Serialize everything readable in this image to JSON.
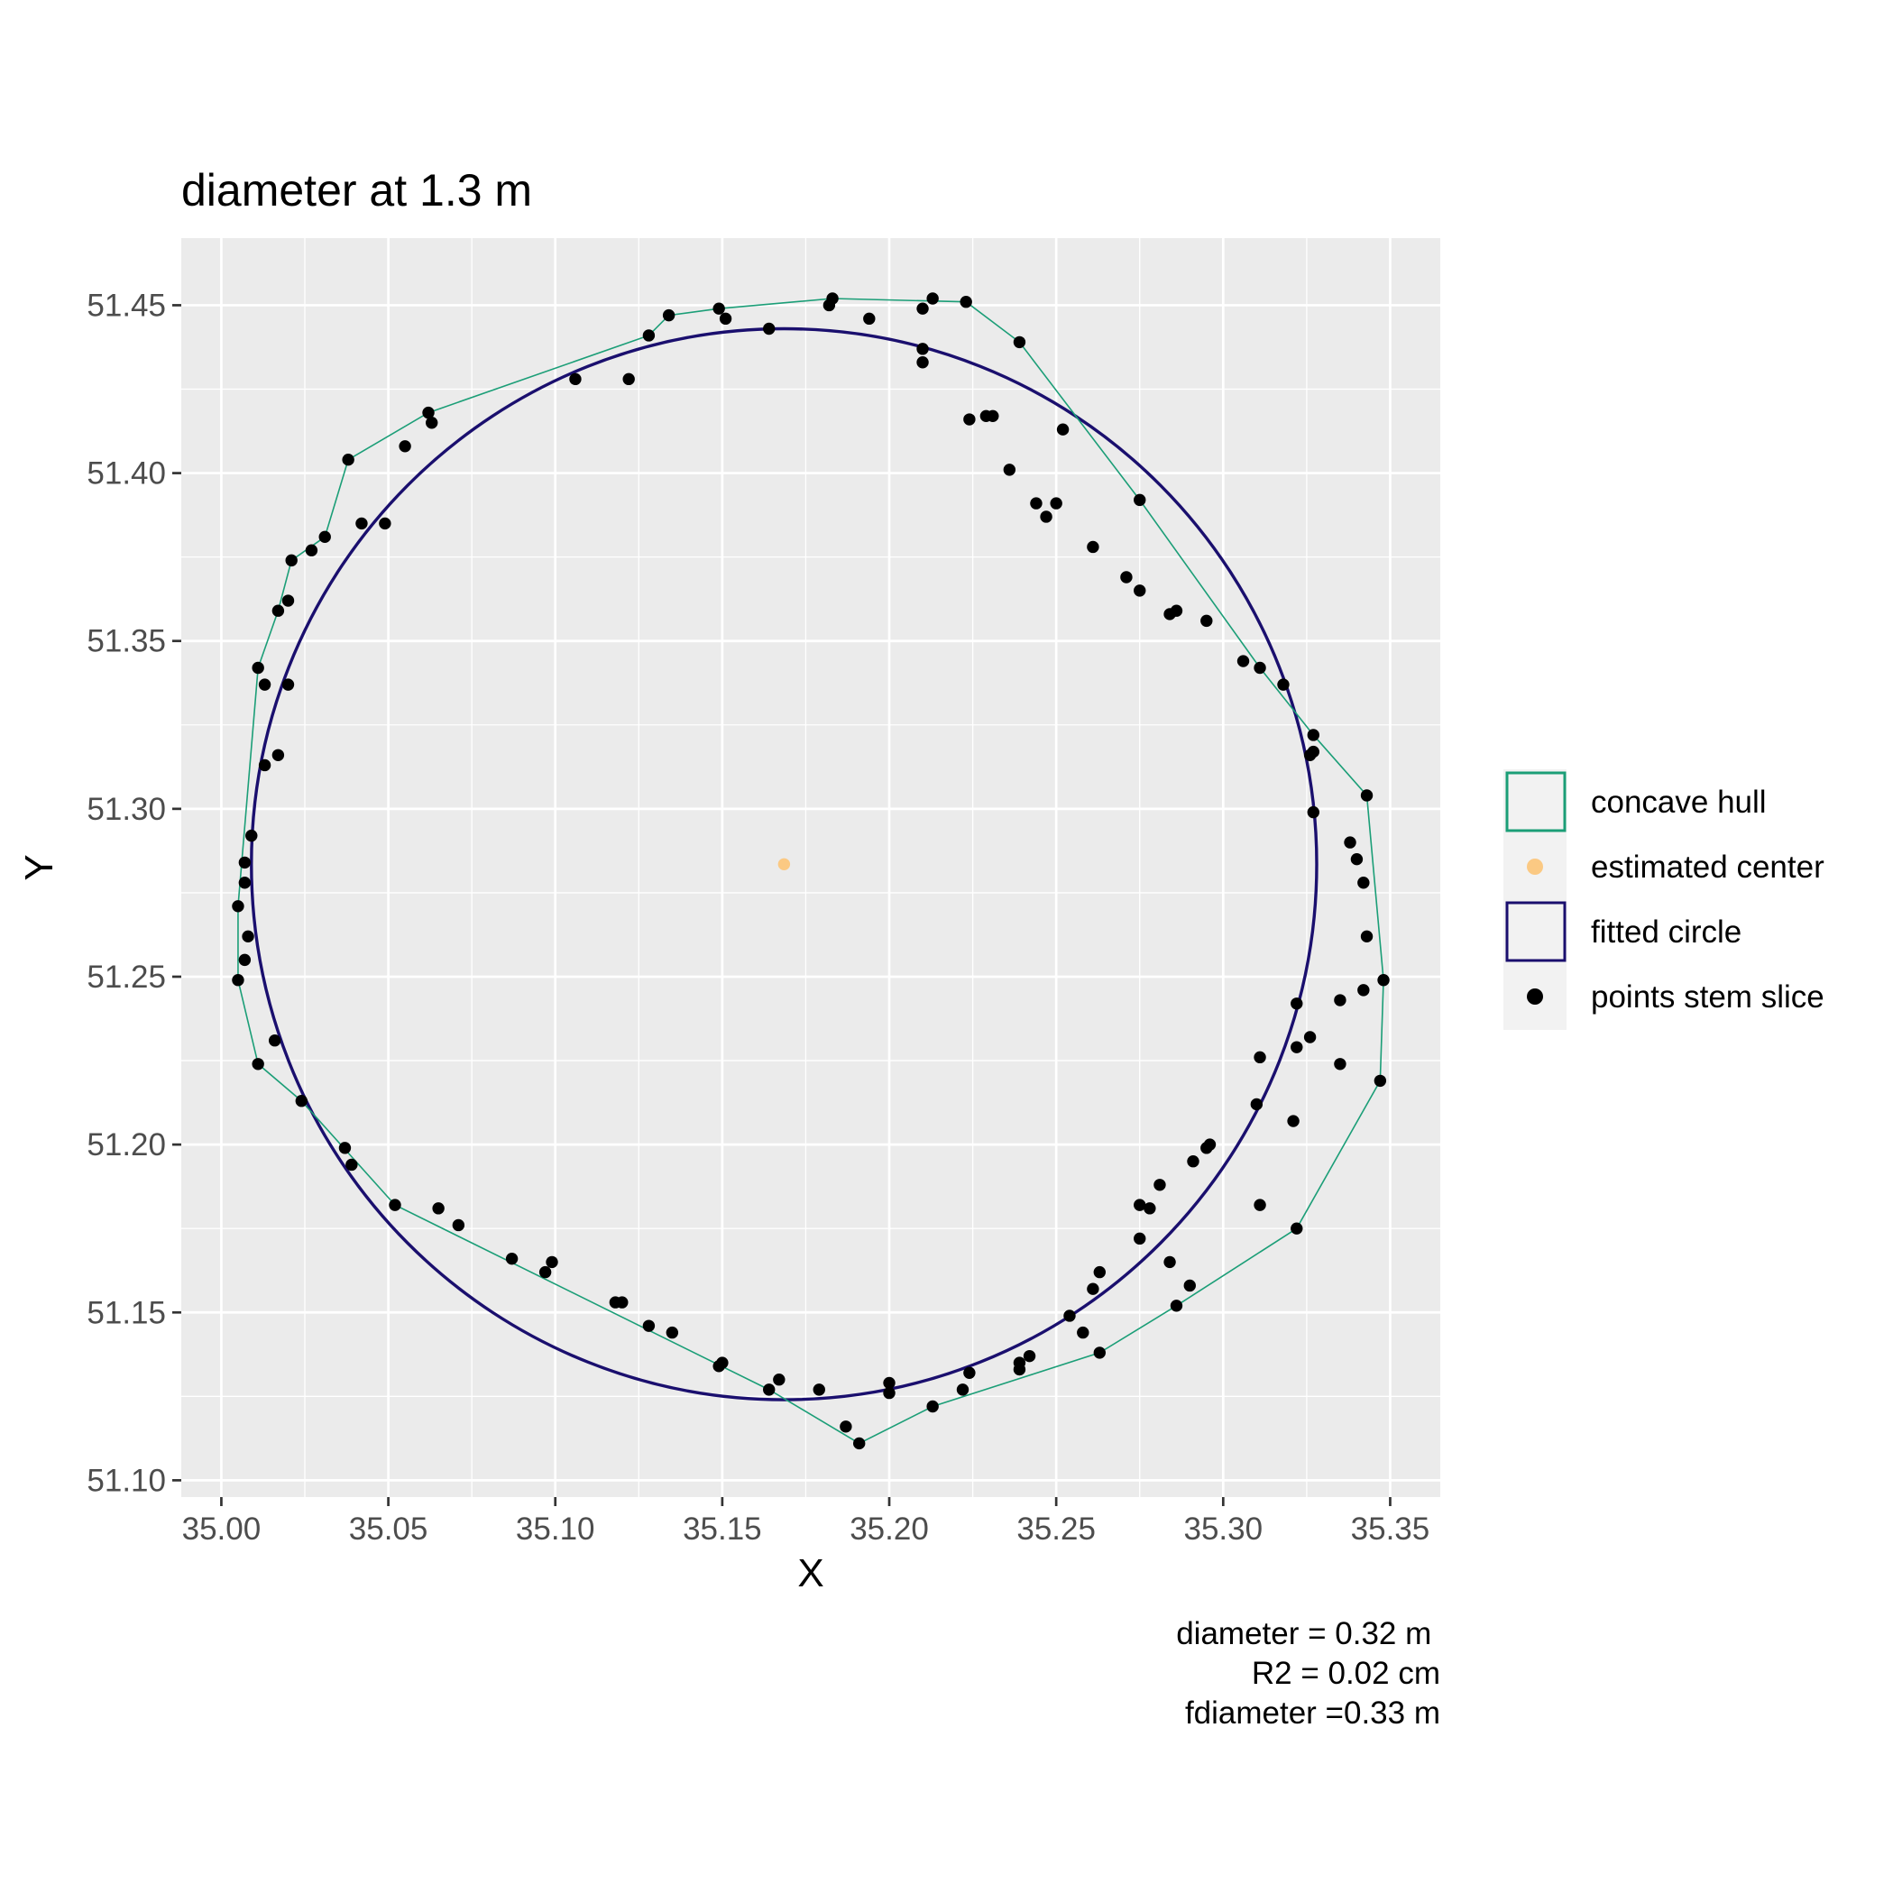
{
  "chart_data": {
    "type": "scatter",
    "title": "diameter at 1.3 m",
    "xlabel": "X",
    "ylabel": "Y",
    "xlim": [
      34.988,
      35.365
    ],
    "ylim": [
      51.095,
      51.47
    ],
    "x_ticks": [
      "35.00",
      "35.05",
      "35.10",
      "35.15",
      "35.20",
      "35.25",
      "35.30",
      "35.35"
    ],
    "y_ticks": [
      "51.10",
      "51.15",
      "51.20",
      "51.25",
      "51.30",
      "51.35",
      "51.40",
      "51.45"
    ],
    "grid": true,
    "legend_position": "right",
    "legend": [
      {
        "label": "concave hull",
        "kind": "hull"
      },
      {
        "label": "estimated center",
        "kind": "center"
      },
      {
        "label": "fitted circle",
        "kind": "circle"
      },
      {
        "label": "points stem slice",
        "kind": "points"
      }
    ],
    "colors": {
      "panel": "#ebebeb",
      "grid": "#ffffff",
      "hull": "#1b9e77",
      "circle": "#1a0f6e",
      "center": "#fbc983",
      "points": "#000000"
    },
    "circle": {
      "cx": 35.1685,
      "cy": 51.2835,
      "r": 0.1595
    },
    "center": {
      "x": 35.1685,
      "y": 51.2835
    },
    "hull": [
      [
        35.183,
        51.452
      ],
      [
        35.223,
        51.451
      ],
      [
        35.239,
        51.439
      ],
      [
        35.275,
        51.392
      ],
      [
        35.311,
        51.342
      ],
      [
        35.327,
        51.322
      ],
      [
        35.343,
        51.304
      ],
      [
        35.348,
        51.249
      ],
      [
        35.347,
        51.219
      ],
      [
        35.322,
        51.175
      ],
      [
        35.286,
        51.152
      ],
      [
        35.263,
        51.138
      ],
      [
        35.213,
        51.122
      ],
      [
        35.191,
        51.111
      ],
      [
        35.164,
        51.127
      ],
      [
        35.052,
        51.182
      ],
      [
        35.024,
        51.213
      ],
      [
        35.011,
        51.224
      ],
      [
        35.005,
        51.249
      ],
      [
        35.005,
        51.271
      ],
      [
        35.011,
        51.342
      ],
      [
        35.017,
        51.359
      ],
      [
        35.021,
        51.374
      ],
      [
        35.031,
        51.381
      ],
      [
        35.038,
        51.404
      ],
      [
        35.062,
        51.418
      ],
      [
        35.128,
        51.441
      ],
      [
        35.134,
        51.447
      ],
      [
        35.149,
        51.449
      ],
      [
        35.183,
        51.452
      ]
    ],
    "points": [
      [
        35.183,
        51.452
      ],
      [
        35.182,
        51.45
      ],
      [
        35.213,
        51.452
      ],
      [
        35.223,
        51.451
      ],
      [
        35.21,
        51.449
      ],
      [
        35.194,
        51.446
      ],
      [
        35.164,
        51.443
      ],
      [
        35.149,
        51.449
      ],
      [
        35.151,
        51.446
      ],
      [
        35.134,
        51.447
      ],
      [
        35.128,
        51.441
      ],
      [
        35.21,
        51.437
      ],
      [
        35.21,
        51.433
      ],
      [
        35.239,
        51.439
      ],
      [
        35.106,
        51.428
      ],
      [
        35.122,
        51.428
      ],
      [
        35.062,
        51.418
      ],
      [
        35.063,
        51.415
      ],
      [
        35.055,
        51.408
      ],
      [
        35.038,
        51.404
      ],
      [
        35.042,
        51.385
      ],
      [
        35.049,
        51.385
      ],
      [
        35.031,
        51.381
      ],
      [
        35.027,
        51.377
      ],
      [
        35.021,
        51.374
      ],
      [
        35.02,
        51.362
      ],
      [
        35.017,
        51.359
      ],
      [
        35.011,
        51.342
      ],
      [
        35.013,
        51.337
      ],
      [
        35.02,
        51.337
      ],
      [
        35.017,
        51.316
      ],
      [
        35.013,
        51.313
      ],
      [
        35.009,
        51.292
      ],
      [
        35.007,
        51.284
      ],
      [
        35.007,
        51.278
      ],
      [
        35.005,
        51.271
      ],
      [
        35.008,
        51.262
      ],
      [
        35.007,
        51.255
      ],
      [
        35.005,
        51.249
      ],
      [
        35.016,
        51.231
      ],
      [
        35.011,
        51.224
      ],
      [
        35.024,
        51.213
      ],
      [
        35.037,
        51.199
      ],
      [
        35.039,
        51.194
      ],
      [
        35.052,
        51.182
      ],
      [
        35.065,
        51.181
      ],
      [
        35.071,
        51.176
      ],
      [
        35.087,
        51.166
      ],
      [
        35.099,
        51.165
      ],
      [
        35.097,
        51.162
      ],
      [
        35.118,
        51.153
      ],
      [
        35.12,
        51.153
      ],
      [
        35.128,
        51.146
      ],
      [
        35.135,
        51.144
      ],
      [
        35.15,
        51.135
      ],
      [
        35.149,
        51.134
      ],
      [
        35.164,
        51.127
      ],
      [
        35.167,
        51.13
      ],
      [
        35.179,
        51.127
      ],
      [
        35.187,
        51.116
      ],
      [
        35.191,
        51.111
      ],
      [
        35.2,
        51.129
      ],
      [
        35.2,
        51.126
      ],
      [
        35.213,
        51.122
      ],
      [
        35.222,
        51.127
      ],
      [
        35.224,
        51.132
      ],
      [
        35.239,
        51.135
      ],
      [
        35.242,
        51.137
      ],
      [
        35.239,
        51.133
      ],
      [
        35.254,
        51.149
      ],
      [
        35.258,
        51.144
      ],
      [
        35.263,
        51.138
      ],
      [
        35.261,
        51.157
      ],
      [
        35.263,
        51.162
      ],
      [
        35.275,
        51.172
      ],
      [
        35.284,
        51.165
      ],
      [
        35.286,
        51.152
      ],
      [
        35.29,
        51.158
      ],
      [
        35.275,
        51.182
      ],
      [
        35.278,
        51.181
      ],
      [
        35.281,
        51.188
      ],
      [
        35.291,
        51.195
      ],
      [
        35.295,
        51.199
      ],
      [
        35.296,
        51.2
      ],
      [
        35.31,
        51.212
      ],
      [
        35.311,
        51.182
      ],
      [
        35.322,
        51.175
      ],
      [
        35.321,
        51.207
      ],
      [
        35.311,
        51.226
      ],
      [
        35.322,
        51.229
      ],
      [
        35.326,
        51.232
      ],
      [
        35.322,
        51.242
      ],
      [
        35.335,
        51.243
      ],
      [
        35.335,
        51.224
      ],
      [
        35.347,
        51.219
      ],
      [
        35.342,
        51.246
      ],
      [
        35.348,
        51.249
      ],
      [
        35.343,
        51.262
      ],
      [
        35.342,
        51.278
      ],
      [
        35.34,
        51.285
      ],
      [
        35.338,
        51.29
      ],
      [
        35.327,
        51.299
      ],
      [
        35.343,
        51.304
      ],
      [
        35.327,
        51.322
      ],
      [
        35.327,
        51.317
      ],
      [
        35.326,
        51.316
      ],
      [
        35.318,
        51.337
      ],
      [
        35.311,
        51.342
      ],
      [
        35.306,
        51.344
      ],
      [
        35.295,
        51.356
      ],
      [
        35.286,
        51.359
      ],
      [
        35.284,
        51.358
      ],
      [
        35.275,
        51.365
      ],
      [
        35.271,
        51.369
      ],
      [
        35.261,
        51.378
      ],
      [
        35.275,
        51.392
      ],
      [
        35.25,
        51.391
      ],
      [
        35.244,
        51.391
      ],
      [
        35.247,
        51.387
      ],
      [
        35.236,
        51.401
      ],
      [
        35.252,
        51.413
      ],
      [
        35.229,
        51.417
      ],
      [
        35.231,
        51.417
      ],
      [
        35.224,
        51.416
      ]
    ],
    "annotations": [
      "diameter = 0.32 m ",
      "R2 = 0.02 cm",
      "fdiameter =0.33 m"
    ]
  }
}
